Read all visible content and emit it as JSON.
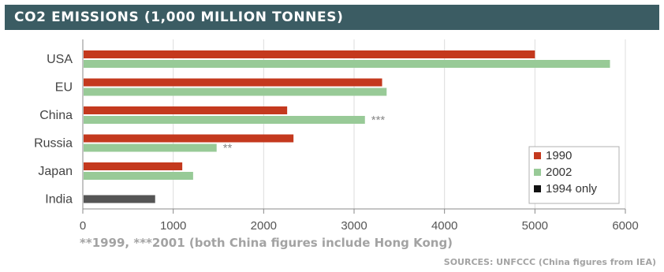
{
  "header": {
    "title": "CO2 EMISSIONS (1,000 MILLION TONNES)"
  },
  "footnote": "**1999, ***2001 (both China figures include Hong Kong)",
  "sources": "SOURCES: UNFCCC (China figures from IEA)",
  "colors": {
    "header_bg": "#3b5c63",
    "y1990": "#c4391e",
    "y2002": "#98ca97",
    "y1994": "#555555",
    "footnote_text": "#a3a3a3"
  },
  "chart_data": {
    "type": "bar",
    "orientation": "horizontal",
    "categories": [
      "USA",
      "EU",
      "China",
      "Russia",
      "Japan",
      "India"
    ],
    "series": [
      {
        "name": "1990",
        "values": [
          5000,
          3310,
          2260,
          2330,
          1100,
          null
        ]
      },
      {
        "name": "2002",
        "values": [
          5830,
          3360,
          3120,
          1480,
          1220,
          null
        ]
      },
      {
        "name": "1994 only",
        "values": [
          null,
          null,
          null,
          null,
          null,
          800
        ]
      }
    ],
    "annotations": [
      {
        "category": "China",
        "series": "2002",
        "text": "***"
      },
      {
        "category": "Russia",
        "series": "2002",
        "text": "**"
      }
    ],
    "xlim": [
      0,
      6000
    ],
    "x_ticks": [
      0,
      1000,
      2000,
      3000,
      4000,
      5000,
      6000
    ],
    "grid": true,
    "legend_position": "bottom-right"
  }
}
